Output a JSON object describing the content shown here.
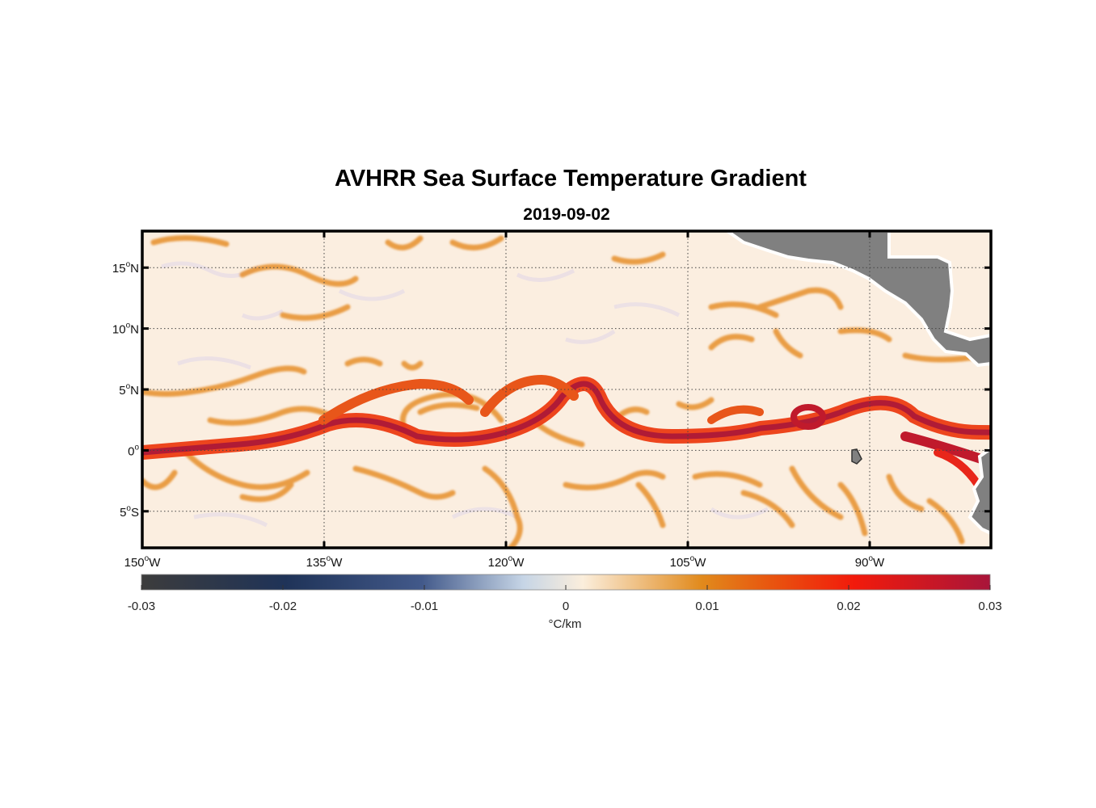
{
  "title": "AVHRR Sea Surface Temperature Gradient",
  "subtitle": "2019-09-02",
  "map": {
    "lon_range": [
      -150,
      -80
    ],
    "lat_range": [
      -8,
      18
    ],
    "lat_ticks": [
      {
        "value": 15,
        "deg": "15",
        "hemi": "N"
      },
      {
        "value": 10,
        "deg": "10",
        "hemi": "N"
      },
      {
        "value": 5,
        "deg": "5",
        "hemi": "N"
      },
      {
        "value": 0,
        "deg": "0",
        "hemi": ""
      },
      {
        "value": -5,
        "deg": "5",
        "hemi": "S"
      }
    ],
    "lon_ticks": [
      {
        "value": -150,
        "deg": "150",
        "hemi": "W"
      },
      {
        "value": -135,
        "deg": "135",
        "hemi": "W"
      },
      {
        "value": -120,
        "deg": "120",
        "hemi": "W"
      },
      {
        "value": -105,
        "deg": "105",
        "hemi": "W"
      },
      {
        "value": -90,
        "deg": "90",
        "hemi": "W"
      }
    ],
    "grid": true,
    "land_color": "#808080",
    "ocean_background": "#fbeee0"
  },
  "colorbar": {
    "range": [
      -0.03,
      0.03
    ],
    "ticks": [
      "-0.03",
      "-0.02",
      "-0.01",
      "0",
      "0.01",
      "0.02",
      "0.03"
    ],
    "tick_values": [
      -0.03,
      -0.02,
      -0.01,
      0,
      0.01,
      0.02,
      0.03
    ],
    "label": "°C/km",
    "colors": [
      "#3c3c3c",
      "#1f3358",
      "#42598a",
      "#c6d5e6",
      "#fbeedc",
      "#e18a1c",
      "#e8560f",
      "#f21a0b",
      "#a8153a"
    ]
  }
}
